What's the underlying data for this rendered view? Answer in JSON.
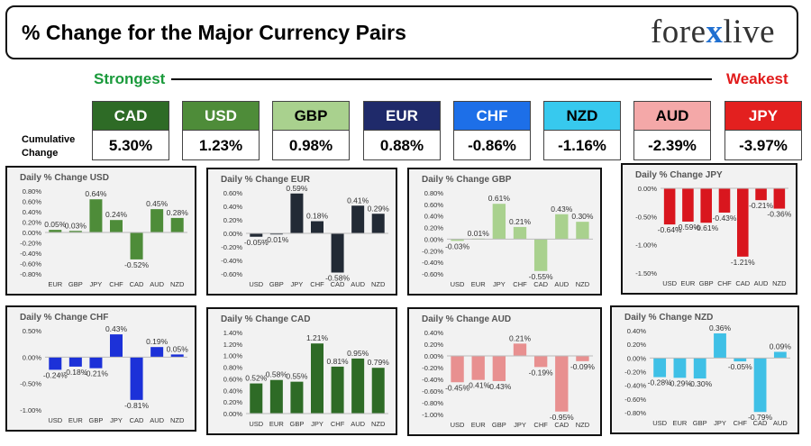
{
  "header": {
    "title": "% Change for the Major Currency Pairs",
    "logo_left": "fore",
    "logo_x": "x",
    "logo_right": "live"
  },
  "strength": {
    "strongest_label": "Strongest",
    "weakest_label": "Weakest",
    "cumulative_label_line1": "Cumulative",
    "cumulative_label_line2": "Change",
    "tiles": [
      {
        "currency": "CAD",
        "value": "5.30%",
        "color": "#2e6b26",
        "text_color": "#ffffff"
      },
      {
        "currency": "USD",
        "value": "1.23%",
        "color": "#4e8c39",
        "text_color": "#ffffff"
      },
      {
        "currency": "GBP",
        "value": "0.98%",
        "color": "#a9d18e",
        "text_color": "#000000"
      },
      {
        "currency": "EUR",
        "value": "0.88%",
        "color": "#1f2a6a",
        "text_color": "#ffffff"
      },
      {
        "currency": "CHF",
        "value": "-0.86%",
        "color": "#1d6fe8",
        "text_color": "#ffffff"
      },
      {
        "currency": "NZD",
        "value": "-1.16%",
        "color": "#37c9ee",
        "text_color": "#000000"
      },
      {
        "currency": "AUD",
        "value": "-2.39%",
        "color": "#f4a8a8",
        "text_color": "#000000"
      },
      {
        "currency": "JPY",
        "value": "-3.97%",
        "color": "#e3201f",
        "text_color": "#ffffff"
      }
    ]
  },
  "chart_data": [
    {
      "type": "bar",
      "title": "Daily % Change USD",
      "categories": [
        "EUR",
        "GBP",
        "JPY",
        "CHF",
        "CAD",
        "AUD",
        "NZD"
      ],
      "values": [
        0.05,
        0.03,
        0.64,
        0.24,
        -0.52,
        0.45,
        0.28
      ],
      "labels": [
        "0.05%",
        "0.03%",
        "0.64%",
        "0.24%",
        "-0.52%",
        "0.45%",
        "0.28%"
      ],
      "ylim": [
        -0.8,
        0.8
      ],
      "ticks": [
        0.8,
        0.6,
        0.4,
        0.2,
        0,
        -0.2,
        -0.4,
        -0.6,
        -0.8
      ],
      "tick_labels": [
        "0.80%",
        "0.60%",
        "0.40%",
        "0.20%",
        "0.00%",
        "-0.20%",
        "-0.40%",
        "-0.60%",
        "-0.80%"
      ],
      "color": "#4e8c39"
    },
    {
      "type": "bar",
      "title": "Daily % Change EUR",
      "categories": [
        "USD",
        "GBP",
        "JPY",
        "CHF",
        "CAD",
        "AUD",
        "NZD"
      ],
      "values": [
        -0.05,
        -0.01,
        0.59,
        0.18,
        -0.58,
        0.41,
        0.29
      ],
      "labels": [
        "-0.05%",
        "-0.01%",
        "0.59%",
        "0.18%",
        "-0.58%",
        "0.41%",
        "0.29%"
      ],
      "ylim": [
        -0.6,
        0.6
      ],
      "ticks": [
        0.6,
        0.4,
        0.2,
        0,
        -0.2,
        -0.4,
        -0.6
      ],
      "tick_labels": [
        "0.60%",
        "0.40%",
        "0.20%",
        "0.00%",
        "-0.20%",
        "-0.40%",
        "-0.60%"
      ],
      "color": "#222a35"
    },
    {
      "type": "bar",
      "title": "Daily % Change GBP",
      "categories": [
        "USD",
        "EUR",
        "JPY",
        "CHF",
        "CAD",
        "AUD",
        "NZD"
      ],
      "values": [
        -0.03,
        0.01,
        0.61,
        0.21,
        -0.55,
        0.43,
        0.3
      ],
      "labels": [
        "-0.03%",
        "0.01%",
        "0.61%",
        "0.21%",
        "-0.55%",
        "0.43%",
        "0.30%"
      ],
      "ylim": [
        -0.6,
        0.8
      ],
      "ticks": [
        0.8,
        0.6,
        0.4,
        0.2,
        0,
        -0.2,
        -0.4,
        -0.6
      ],
      "tick_labels": [
        "0.80%",
        "0.60%",
        "0.40%",
        "0.20%",
        "0.00%",
        "-0.20%",
        "-0.40%",
        "-0.60%"
      ],
      "color": "#a9d18e"
    },
    {
      "type": "bar",
      "title": "Daily % Change JPY",
      "categories": [
        "USD",
        "EUR",
        "GBP",
        "CHF",
        "CAD",
        "AUD",
        "NZD"
      ],
      "values": [
        -0.64,
        -0.59,
        -0.61,
        -0.43,
        -1.21,
        -0.21,
        -0.36
      ],
      "labels": [
        "-0.64%",
        "-0.59%",
        "-0.61%",
        "-0.43%",
        "-1.21%",
        "-0.21%",
        "-0.36%"
      ],
      "ylim": [
        -1.5,
        0
      ],
      "ticks": [
        0,
        -0.5,
        -1.0,
        -1.5
      ],
      "tick_labels": [
        "0.00%",
        "-0.50%",
        "-1.00%",
        "-1.50%"
      ],
      "color": "#d9161e"
    },
    {
      "type": "bar",
      "title": "Daily % Change CHF",
      "categories": [
        "USD",
        "EUR",
        "GBP",
        "JPY",
        "CAD",
        "AUD",
        "NZD"
      ],
      "values": [
        -0.24,
        -0.18,
        -0.21,
        0.43,
        -0.81,
        0.19,
        0.05
      ],
      "labels": [
        "-0.24%",
        "-0.18%",
        "-0.21%",
        "0.43%",
        "-0.81%",
        "0.19%",
        "0.05%"
      ],
      "ylim": [
        -1.0,
        0.5
      ],
      "ticks": [
        0.5,
        0,
        -0.5,
        -1.0
      ],
      "tick_labels": [
        "0.50%",
        "0.00%",
        "-0.50%",
        "-1.00%"
      ],
      "color": "#1c31d8"
    },
    {
      "type": "bar",
      "title": "Daily % Change CAD",
      "categories": [
        "USD",
        "EUR",
        "GBP",
        "JPY",
        "CHF",
        "AUD",
        "NZD"
      ],
      "values": [
        0.52,
        0.58,
        0.55,
        1.21,
        0.81,
        0.95,
        0.79
      ],
      "labels": [
        "0.52%",
        "0.58%",
        "0.55%",
        "1.21%",
        "0.81%",
        "0.95%",
        "0.79%"
      ],
      "ylim": [
        0,
        1.4
      ],
      "ticks": [
        1.4,
        1.2,
        1.0,
        0.8,
        0.6,
        0.4,
        0.2,
        0
      ],
      "tick_labels": [
        "1.40%",
        "1.20%",
        "1.00%",
        "0.80%",
        "0.60%",
        "0.40%",
        "0.20%",
        "0.00%"
      ],
      "color": "#2e6b26"
    },
    {
      "type": "bar",
      "title": "Daily % Change AUD",
      "categories": [
        "USD",
        "EUR",
        "GBP",
        "JPY",
        "CHF",
        "CAD",
        "NZD"
      ],
      "values": [
        -0.45,
        -0.41,
        -0.43,
        0.21,
        -0.19,
        -0.95,
        -0.09
      ],
      "labels": [
        "-0.45%",
        "-0.41%",
        "-0.43%",
        "0.21%",
        "-0.19%",
        "-0.95%",
        "-0.09%"
      ],
      "ylim": [
        -1.0,
        0.4
      ],
      "ticks": [
        0.4,
        0.2,
        0,
        -0.2,
        -0.4,
        -0.6,
        -0.8,
        -1.0
      ],
      "tick_labels": [
        "0.40%",
        "0.20%",
        "0.00%",
        "-0.20%",
        "-0.40%",
        "-0.60%",
        "-0.80%",
        "-1.00%"
      ],
      "color": "#e89090"
    },
    {
      "type": "bar",
      "title": "Daily % Change NZD",
      "categories": [
        "USD",
        "EUR",
        "GBP",
        "JPY",
        "CHF",
        "CAD",
        "AUD"
      ],
      "values": [
        -0.28,
        -0.29,
        -0.3,
        0.36,
        -0.05,
        -0.79,
        0.09
      ],
      "labels": [
        "-0.28%",
        "-0.29%",
        "-0.30%",
        "0.36%",
        "-0.05%",
        "-0.79%",
        "0.09%"
      ],
      "ylim": [
        -0.8,
        0.4
      ],
      "ticks": [
        0.4,
        0.2,
        0,
        -0.2,
        -0.4,
        -0.6,
        -0.8
      ],
      "tick_labels": [
        "0.40%",
        "0.20%",
        "0.00%",
        "-0.20%",
        "-0.40%",
        "-0.60%",
        "-0.80%"
      ],
      "color": "#3fc0e6"
    }
  ]
}
